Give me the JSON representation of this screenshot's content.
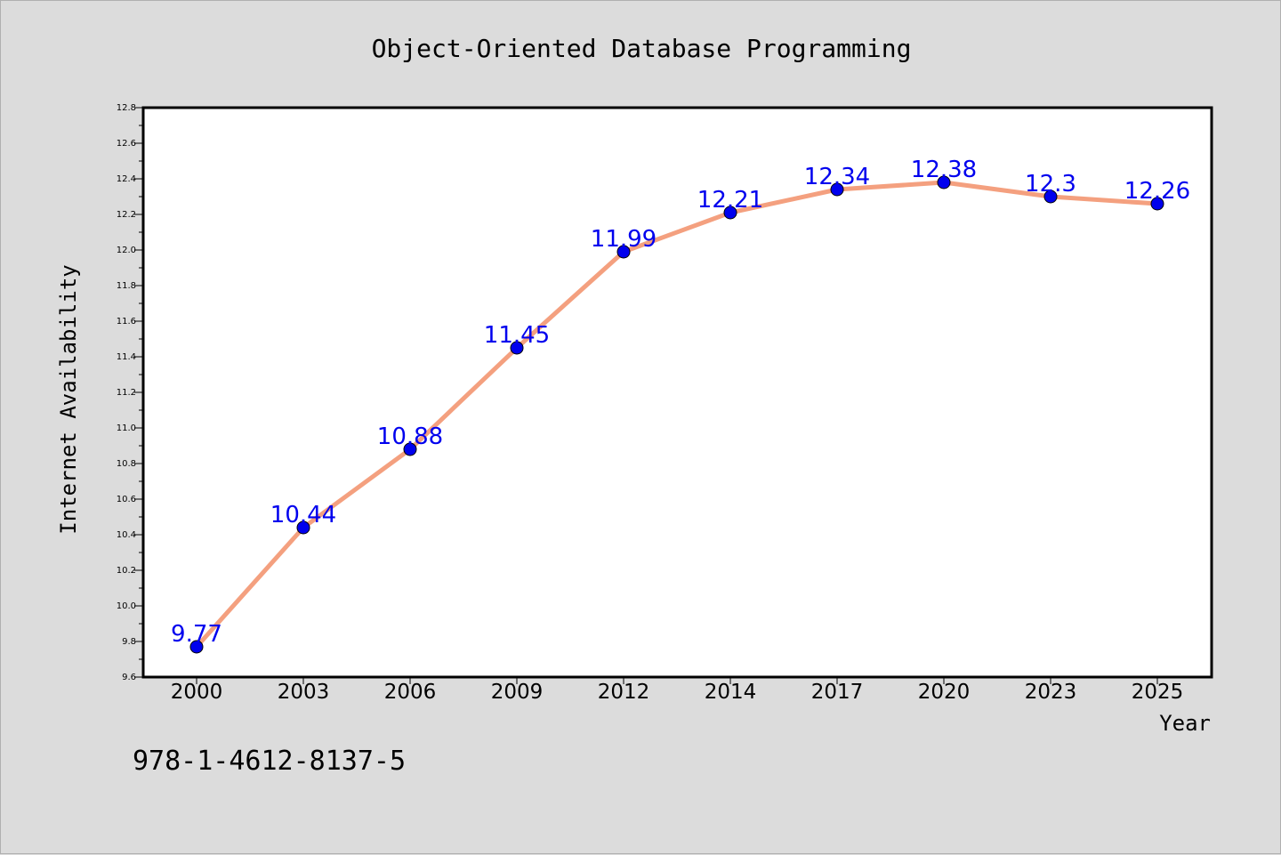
{
  "chart_data": {
    "type": "line",
    "title": "Object-Oriented Database Programming",
    "xlabel": "Year",
    "ylabel": "Internet Availability",
    "categories": [
      "2000",
      "2003",
      "2006",
      "2009",
      "2012",
      "2014",
      "2017",
      "2020",
      "2023",
      "2025"
    ],
    "series": [
      {
        "values": [
          9.77,
          10.44,
          10.88,
          11.45,
          11.99,
          12.21,
          12.34,
          12.38,
          12.3,
          12.26
        ],
        "data_labels": [
          "9.77",
          "10.44",
          "10.88",
          "11.45",
          "11.99",
          "12.21",
          "12.34",
          "12.38",
          "12.3",
          "12.26"
        ],
        "line_color": "#f4a07f",
        "marker_color": "#0000ee"
      }
    ],
    "ylim": [
      9.6,
      12.8
    ],
    "yticks": [
      "9.6",
      "9.8",
      "10.0",
      "10.2",
      "10.4",
      "10.6",
      "10.8",
      "11.0",
      "11.2",
      "11.4",
      "11.6",
      "11.8",
      "12.0",
      "12.2",
      "12.4",
      "12.6",
      "12.8"
    ],
    "grid": false,
    "legend": "none",
    "data_label_color": "#0000ee"
  },
  "footer_text": "978-1-4612-8137-5",
  "colors": {
    "background": "#dcdcdc",
    "plot_background": "#ffffff",
    "axis": "#000000"
  }
}
